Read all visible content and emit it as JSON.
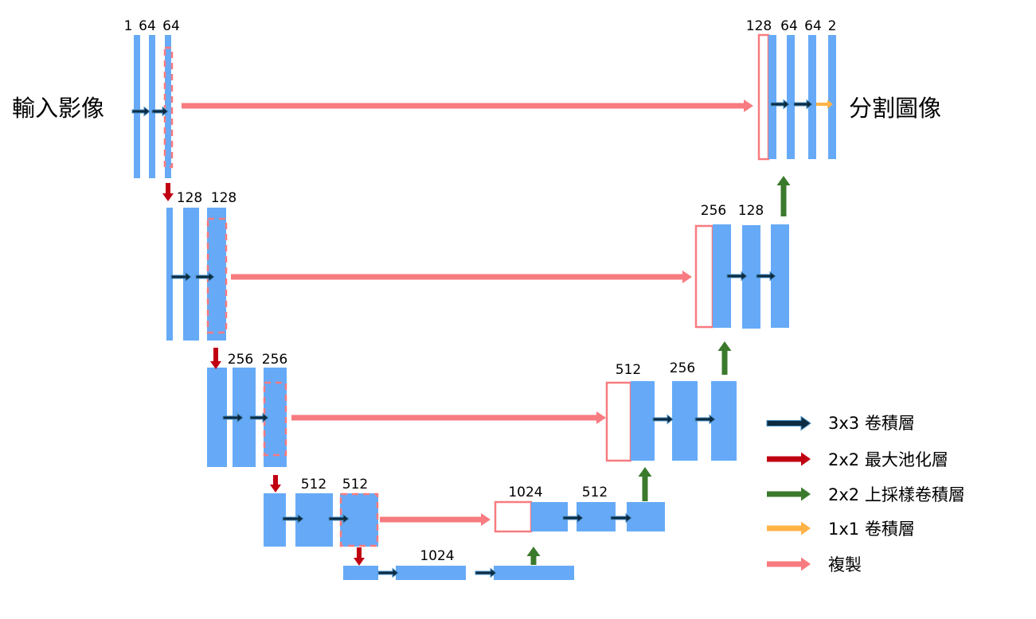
{
  "input_label": "輸入影像",
  "output_label": "分割圖像",
  "levels": [
    {
      "encoder": [
        1,
        64,
        64
      ],
      "decoder": [
        128,
        64,
        64,
        2
      ]
    },
    {
      "encoder": [
        128,
        128
      ],
      "decoder": [
        256,
        128
      ]
    },
    {
      "encoder": [
        256,
        256
      ],
      "decoder": [
        512,
        256
      ]
    },
    {
      "encoder": [
        512,
        512
      ],
      "decoder": [
        1024,
        512
      ]
    }
  ],
  "bottom": [
    1024
  ],
  "legend": [
    "3x3 卷積層",
    "2x2 最大池化層",
    "2x2 上採樣卷積層",
    "1x1 卷積層",
    "複製"
  ]
}
